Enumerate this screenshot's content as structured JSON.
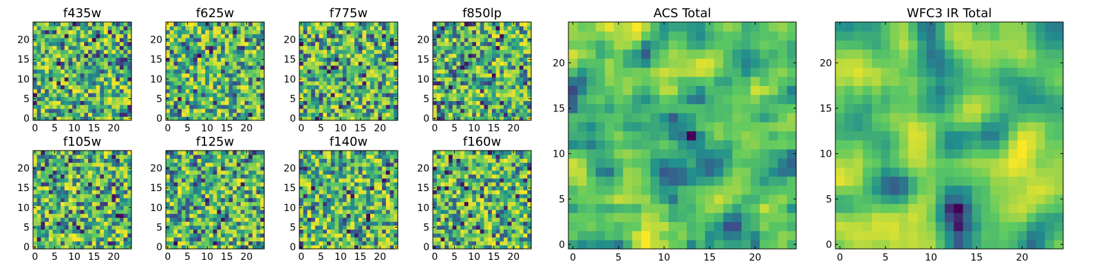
{
  "figure": {
    "colormap": "viridis",
    "colormap_stops": [
      "#440154",
      "#3b528b",
      "#21908d",
      "#5dc962",
      "#fde725"
    ]
  },
  "chart_data": [
    {
      "type": "heatmap",
      "title": "f435w",
      "grid_size": 25,
      "xlim": [
        0,
        25
      ],
      "ylim": [
        0,
        25
      ],
      "xticks": [
        0,
        5,
        10,
        15,
        20
      ],
      "yticks": [
        0,
        5,
        10,
        15,
        20
      ],
      "grid": false,
      "smoothness": "noisy"
    },
    {
      "type": "heatmap",
      "title": "f625w",
      "grid_size": 25,
      "xlim": [
        0,
        25
      ],
      "ylim": [
        0,
        25
      ],
      "xticks": [
        0,
        5,
        10,
        15,
        20
      ],
      "yticks": [
        0,
        5,
        10,
        15,
        20
      ],
      "grid": false,
      "smoothness": "noisy"
    },
    {
      "type": "heatmap",
      "title": "f775w",
      "grid_size": 25,
      "xlim": [
        0,
        25
      ],
      "ylim": [
        0,
        25
      ],
      "xticks": [
        0,
        5,
        10,
        15,
        20
      ],
      "yticks": [
        0,
        5,
        10,
        15,
        20
      ],
      "grid": false,
      "smoothness": "noisy"
    },
    {
      "type": "heatmap",
      "title": "f850lp",
      "grid_size": 25,
      "xlim": [
        0,
        25
      ],
      "ylim": [
        0,
        25
      ],
      "xticks": [
        0,
        5,
        10,
        15,
        20
      ],
      "yticks": [
        0,
        5,
        10,
        15,
        20
      ],
      "grid": false,
      "smoothness": "noisy"
    },
    {
      "type": "heatmap",
      "title": "f105w",
      "grid_size": 25,
      "xlim": [
        0,
        25
      ],
      "ylim": [
        0,
        25
      ],
      "xticks": [
        0,
        5,
        10,
        15,
        20
      ],
      "yticks": [
        0,
        5,
        10,
        15,
        20
      ],
      "grid": false,
      "smoothness": "noisy"
    },
    {
      "type": "heatmap",
      "title": "f125w",
      "grid_size": 25,
      "xlim": [
        0,
        25
      ],
      "ylim": [
        0,
        25
      ],
      "xticks": [
        0,
        5,
        10,
        15,
        20
      ],
      "yticks": [
        0,
        5,
        10,
        15,
        20
      ],
      "grid": false,
      "smoothness": "noisy"
    },
    {
      "type": "heatmap",
      "title": "f140w",
      "grid_size": 25,
      "xlim": [
        0,
        25
      ],
      "ylim": [
        0,
        25
      ],
      "xticks": [
        0,
        5,
        10,
        15,
        20
      ],
      "yticks": [
        0,
        5,
        10,
        15,
        20
      ],
      "grid": false,
      "smoothness": "noisy"
    },
    {
      "type": "heatmap",
      "title": "f160w",
      "grid_size": 25,
      "xlim": [
        0,
        25
      ],
      "ylim": [
        0,
        25
      ],
      "xticks": [
        0,
        5,
        10,
        15,
        20
      ],
      "yticks": [
        0,
        5,
        10,
        15,
        20
      ],
      "grid": false,
      "smoothness": "noisy"
    },
    {
      "type": "heatmap",
      "title": "ACS Total",
      "grid_size": 25,
      "xlim": [
        0,
        25
      ],
      "ylim": [
        0,
        25
      ],
      "xticks": [
        0,
        5,
        10,
        15,
        20
      ],
      "yticks": [
        0,
        5,
        10,
        15,
        20
      ],
      "grid": false,
      "smoothness": "medium"
    },
    {
      "type": "heatmap",
      "title": "WFC3 IR Total",
      "grid_size": 25,
      "xlim": [
        0,
        25
      ],
      "ylim": [
        0,
        25
      ],
      "xticks": [
        0,
        5,
        10,
        15,
        20
      ],
      "yticks": [
        0,
        5,
        10,
        15,
        20
      ],
      "grid": false,
      "smoothness": "smooth"
    }
  ]
}
